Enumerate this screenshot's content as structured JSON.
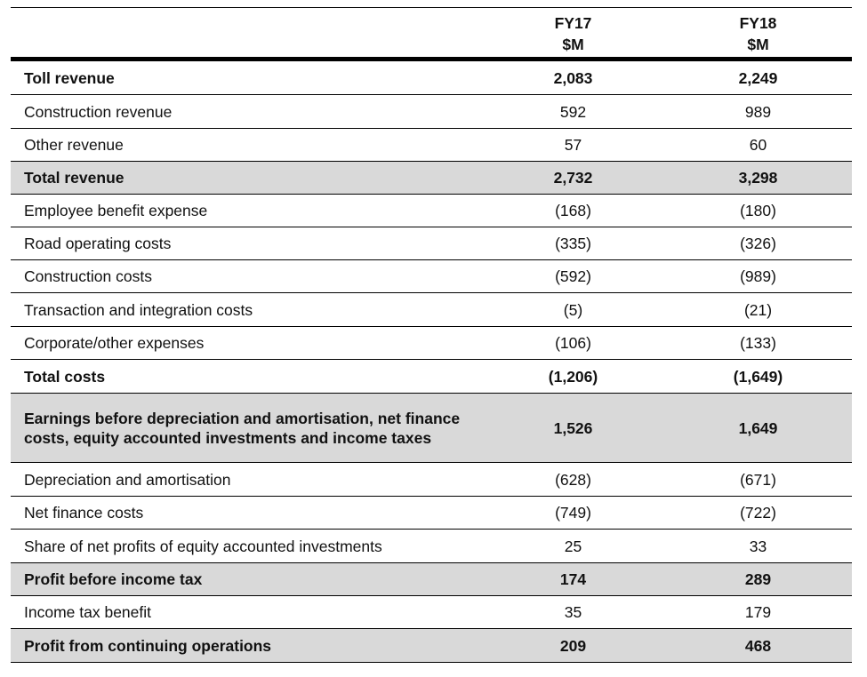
{
  "table": {
    "header": {
      "col1": [
        "FY17",
        "$M"
      ],
      "col2": [
        "FY18",
        "$M"
      ]
    },
    "rows": [
      {
        "label": "Toll revenue",
        "fy17": "2,083",
        "fy18": "2,249",
        "bold": true,
        "shaded": false
      },
      {
        "label": "Construction revenue",
        "fy17": "592",
        "fy18": "989",
        "bold": false,
        "shaded": false
      },
      {
        "label": "Other revenue",
        "fy17": "57",
        "fy18": "60",
        "bold": false,
        "shaded": false
      },
      {
        "label": "Total revenue",
        "fy17": "2,732",
        "fy18": "3,298",
        "bold": true,
        "shaded": true
      },
      {
        "label": "Employee benefit expense",
        "fy17": "(168)",
        "fy18": "(180)",
        "bold": false,
        "shaded": false
      },
      {
        "label": "Road operating costs",
        "fy17": "(335)",
        "fy18": "(326)",
        "bold": false,
        "shaded": false
      },
      {
        "label": "Construction costs",
        "fy17": "(592)",
        "fy18": "(989)",
        "bold": false,
        "shaded": false
      },
      {
        "label": "Transaction and integration costs",
        "fy17": "(5)",
        "fy18": "(21)",
        "bold": false,
        "shaded": false
      },
      {
        "label": "Corporate/other expenses",
        "fy17": "(106)",
        "fy18": "(133)",
        "bold": false,
        "shaded": false
      },
      {
        "label": "Total costs",
        "fy17": "(1,206)",
        "fy18": "(1,649)",
        "bold": true,
        "shaded": false
      },
      {
        "label": "Earnings before depreciation and amortisation, net finance costs, equity accounted investments and income taxes",
        "fy17": "1,526",
        "fy18": "1,649",
        "bold": true,
        "shaded": true
      },
      {
        "label": "Depreciation and amortisation",
        "fy17": "(628)",
        "fy18": "(671)",
        "bold": false,
        "shaded": false
      },
      {
        "label": "Net finance costs",
        "fy17": "(749)",
        "fy18": "(722)",
        "bold": false,
        "shaded": false
      },
      {
        "label": "Share of net profits of equity accounted investments",
        "fy17": "25",
        "fy18": "33",
        "bold": false,
        "shaded": false
      },
      {
        "label": "Profit before income tax",
        "fy17": "174",
        "fy18": "289",
        "bold": true,
        "shaded": true
      },
      {
        "label": "Income tax benefit",
        "fy17": "35",
        "fy18": "179",
        "bold": false,
        "shaded": false
      },
      {
        "label": "Profit from continuing operations",
        "fy17": "209",
        "fy18": "468",
        "bold": true,
        "shaded": true
      }
    ]
  }
}
